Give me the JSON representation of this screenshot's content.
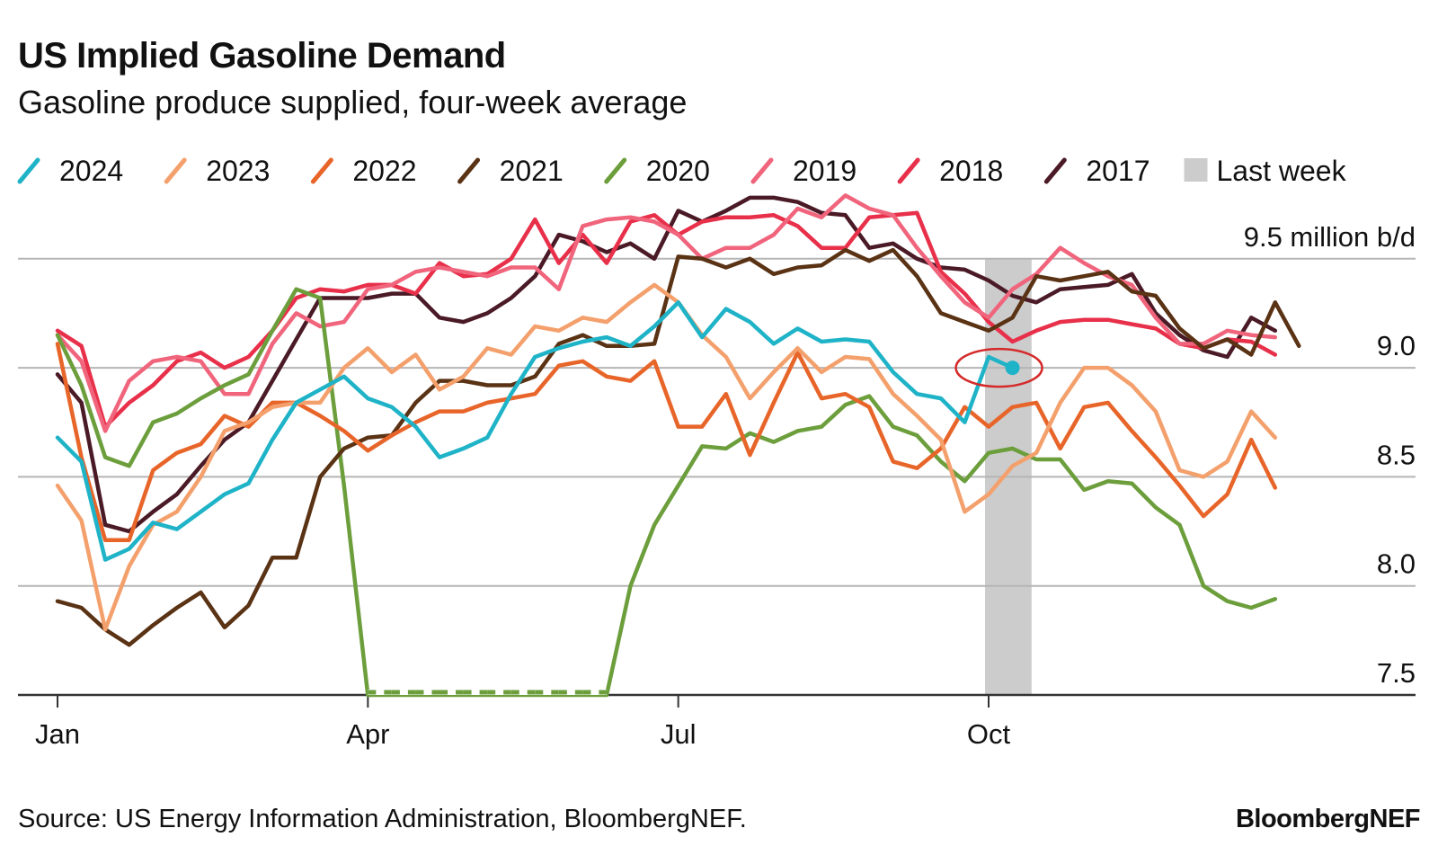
{
  "chart_data": {
    "type": "line",
    "title": "US Implied Gasoline Demand",
    "subtitle": "Gasoline produce supplied, four-week average",
    "source": "Source: US Energy Information Administration, BloombergNEF.",
    "brand": "BloombergNEF",
    "x": [
      0,
      1,
      2,
      3,
      4,
      5,
      6,
      7,
      8,
      9,
      10,
      11,
      12,
      13,
      14,
      15,
      16,
      17,
      18,
      19,
      20,
      21,
      22,
      23,
      24,
      25,
      26,
      27,
      28,
      29,
      30,
      31,
      32,
      33,
      34,
      35,
      36,
      37,
      38,
      39,
      40,
      41,
      42,
      43,
      44,
      45,
      46,
      47,
      48,
      49,
      50,
      51,
      52
    ],
    "xlim": [
      -1.5,
      57
    ],
    "xticks": [
      {
        "value": 0,
        "label": "Jan"
      },
      {
        "value": 13,
        "label": "Apr"
      },
      {
        "value": 26,
        "label": "Jul"
      },
      {
        "value": 39,
        "label": "Oct"
      }
    ],
    "ylim": [
      7.5,
      9.8
    ],
    "yticks": [
      7.5,
      {
        "value": 8,
        "label": "8.0"
      },
      8.5,
      {
        "value": 9,
        "label": "9.0"
      },
      {
        "value": 9.5,
        "label": "9.5 million b/d"
      }
    ],
    "grid": true,
    "highlight": {
      "label": "Last week",
      "x": [
        38.85,
        40.8
      ],
      "color": "#cccccc"
    },
    "series": [
      {
        "name": "2024",
        "color": "#1fb3c8",
        "values": [
          8.68,
          8.57,
          8.12,
          8.17,
          8.29,
          8.26,
          8.34,
          8.42,
          8.47,
          8.67,
          8.84,
          8.9,
          8.96,
          8.86,
          8.82,
          8.73,
          8.59,
          8.63,
          8.68,
          8.88,
          9.05,
          9.09,
          9.12,
          9.14,
          9.1,
          9.19,
          9.3,
          9.14,
          9.27,
          9.21,
          9.11,
          9.18,
          9.12,
          9.13,
          9.12,
          8.98,
          8.88,
          8.86,
          8.75,
          9.05,
          9.0,
          null,
          null,
          null,
          null,
          null,
          null,
          null,
          null,
          null,
          null,
          null,
          null
        ]
      },
      {
        "name": "2023",
        "color": "#f4a06c",
        "values": [
          8.46,
          8.3,
          7.8,
          8.09,
          8.28,
          8.34,
          8.5,
          8.71,
          8.75,
          8.82,
          8.84,
          8.84,
          9.0,
          9.09,
          8.98,
          9.06,
          8.9,
          8.96,
          9.09,
          9.06,
          9.19,
          9.17,
          9.23,
          9.21,
          9.3,
          9.38,
          9.3,
          9.15,
          9.05,
          8.86,
          8.98,
          9.09,
          8.98,
          9.05,
          9.04,
          8.88,
          8.78,
          8.67,
          8.34,
          8.42,
          8.55,
          8.61,
          8.84,
          9.0,
          9.0,
          8.92,
          8.8,
          8.53,
          8.5,
          8.57,
          8.8,
          8.68,
          null
        ]
      },
      {
        "name": "2022",
        "color": "#e8652a",
        "values": [
          9.11,
          8.59,
          8.21,
          8.21,
          8.53,
          8.61,
          8.65,
          8.78,
          8.73,
          8.84,
          8.84,
          8.78,
          8.71,
          8.62,
          8.69,
          8.75,
          8.8,
          8.8,
          8.84,
          8.86,
          8.88,
          9.01,
          9.03,
          8.96,
          8.94,
          9.03,
          8.73,
          8.73,
          8.88,
          8.6,
          8.84,
          9.07,
          8.86,
          8.88,
          8.82,
          8.57,
          8.54,
          8.63,
          8.82,
          8.73,
          8.82,
          8.84,
          8.63,
          8.82,
          8.84,
          8.71,
          8.59,
          8.46,
          8.32,
          8.42,
          8.67,
          8.45,
          null
        ]
      },
      {
        "name": "2021",
        "color": "#5a3214",
        "values": [
          7.93,
          7.9,
          7.8,
          7.73,
          7.82,
          7.9,
          7.97,
          7.81,
          7.91,
          8.13,
          8.13,
          8.5,
          8.63,
          8.68,
          8.69,
          8.84,
          8.94,
          8.94,
          8.92,
          8.92,
          8.96,
          9.11,
          9.15,
          9.1,
          9.1,
          9.11,
          9.51,
          9.5,
          9.46,
          9.5,
          9.43,
          9.46,
          9.47,
          9.54,
          9.49,
          9.54,
          9.42,
          9.25,
          9.21,
          9.17,
          9.23,
          9.42,
          9.4,
          9.42,
          9.44,
          9.35,
          9.33,
          9.18,
          9.09,
          9.13,
          9.06,
          9.3,
          9.1
        ]
      },
      {
        "name": "2020",
        "color": "#6c9e3c",
        "values": [
          9.15,
          8.92,
          8.59,
          8.55,
          8.75,
          8.79,
          8.86,
          8.92,
          8.97,
          9.17,
          9.36,
          9.32,
          8.46,
          7.5,
          7.5,
          7.5,
          7.5,
          7.5,
          7.5,
          7.5,
          7.5,
          7.5,
          7.5,
          7.5,
          8.0,
          8.28,
          8.46,
          8.64,
          8.63,
          8.7,
          8.66,
          8.71,
          8.73,
          8.83,
          8.87,
          8.73,
          8.69,
          8.57,
          8.48,
          8.61,
          8.63,
          8.58,
          8.58,
          8.44,
          8.48,
          8.47,
          8.36,
          8.28,
          8.0,
          7.93,
          7.9,
          7.94,
          null
        ]
      },
      {
        "name": "2019",
        "color": "#f0647c",
        "values": [
          9.15,
          9.03,
          8.71,
          8.94,
          9.03,
          9.05,
          9.03,
          8.88,
          8.88,
          9.11,
          9.25,
          9.19,
          9.21,
          9.36,
          9.38,
          9.44,
          9.46,
          9.44,
          9.42,
          9.46,
          9.46,
          9.36,
          9.65,
          9.68,
          9.69,
          9.67,
          9.61,
          9.5,
          9.55,
          9.55,
          9.61,
          9.73,
          9.69,
          9.79,
          9.73,
          9.7,
          9.55,
          9.42,
          9.3,
          9.23,
          9.36,
          9.43,
          9.55,
          9.48,
          9.42,
          9.38,
          9.23,
          9.11,
          9.11,
          9.17,
          9.15,
          9.14,
          null
        ]
      },
      {
        "name": "2018",
        "color": "#e8304a",
        "values": [
          9.17,
          9.1,
          8.73,
          8.84,
          8.92,
          9.03,
          9.07,
          9.0,
          9.05,
          9.17,
          9.32,
          9.36,
          9.35,
          9.38,
          9.38,
          9.34,
          9.48,
          9.42,
          9.43,
          9.5,
          9.68,
          9.48,
          9.61,
          9.48,
          9.67,
          9.7,
          9.61,
          9.67,
          9.69,
          9.69,
          9.7,
          9.65,
          9.55,
          9.55,
          9.69,
          9.7,
          9.71,
          9.44,
          9.34,
          9.21,
          9.12,
          9.17,
          9.21,
          9.22,
          9.22,
          9.2,
          9.18,
          9.11,
          9.09,
          9.13,
          9.12,
          9.06,
          null
        ]
      },
      {
        "name": "2017",
        "color": "#4a1a26",
        "values": [
          8.97,
          8.84,
          8.28,
          8.25,
          8.34,
          8.42,
          8.55,
          8.67,
          8.75,
          8.94,
          9.13,
          9.32,
          9.32,
          9.32,
          9.34,
          9.34,
          9.23,
          9.21,
          9.25,
          9.32,
          9.42,
          9.61,
          9.58,
          9.53,
          9.57,
          9.5,
          9.72,
          9.67,
          9.72,
          9.78,
          9.78,
          9.76,
          9.71,
          9.7,
          9.55,
          9.57,
          9.5,
          9.46,
          9.45,
          9.4,
          9.33,
          9.3,
          9.36,
          9.37,
          9.38,
          9.43,
          9.25,
          9.15,
          9.08,
          9.05,
          9.23,
          9.17,
          null
        ]
      }
    ]
  }
}
